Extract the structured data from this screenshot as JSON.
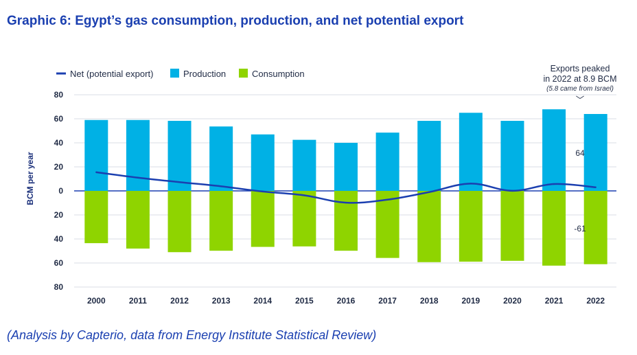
{
  "title": "Graphic 6: Egypt’s gas consumption, production, and net potential export",
  "source": "(Analysis by Capterio, data from Energy Institute Statistical Review)",
  "chart_data": {
    "type": "bar",
    "categories": [
      "2000",
      "2011",
      "2012",
      "2013",
      "2014",
      "2015",
      "2016",
      "2017",
      "2018",
      "2019",
      "2020",
      "2021",
      "2022"
    ],
    "series": [
      {
        "name": "Production",
        "type": "bar",
        "color": "#00b1e5",
        "values": [
          59.0,
          59.0,
          58.3,
          53.6,
          47.0,
          42.5,
          40.0,
          48.5,
          58.3,
          65.0,
          58.3,
          67.9,
          64.0
        ]
      },
      {
        "name": "Consumption",
        "type": "bar",
        "color": "#8fd400",
        "values": [
          -43.5,
          -48.0,
          -51.0,
          -49.8,
          -46.6,
          -46.2,
          -49.8,
          -55.8,
          -59.3,
          -58.9,
          -58.2,
          -62.2,
          -61.0
        ]
      },
      {
        "name": "Net (potential export)",
        "type": "line",
        "color": "#1b3fb0",
        "values": [
          15.5,
          11.0,
          7.3,
          3.8,
          -0.5,
          -3.7,
          -9.8,
          -7.3,
          -1.0,
          6.1,
          0.1,
          5.7,
          3.0
        ]
      }
    ],
    "legend": [
      "Net (potential export)",
      "Production",
      "Consumption"
    ],
    "ylabel": "BCM per year",
    "xlabel": "",
    "ylim": [
      -80,
      80
    ],
    "yticks": [
      80,
      60,
      40,
      20,
      0,
      20,
      40,
      60,
      80
    ],
    "data_labels": {
      "production_2022": "64",
      "consumption_2022": "-61"
    },
    "annotation": {
      "line1": "Exports peaked",
      "line2": "in 2022 at 8.9 BCM",
      "line3": "(5.8 came from Israel)",
      "arrow": "﹀"
    },
    "colors": {
      "production": "#00b1e5",
      "consumption": "#8fd400",
      "net": "#1b3fb0",
      "grid": "#d9dde6",
      "zero": "#1b3fb0"
    }
  }
}
